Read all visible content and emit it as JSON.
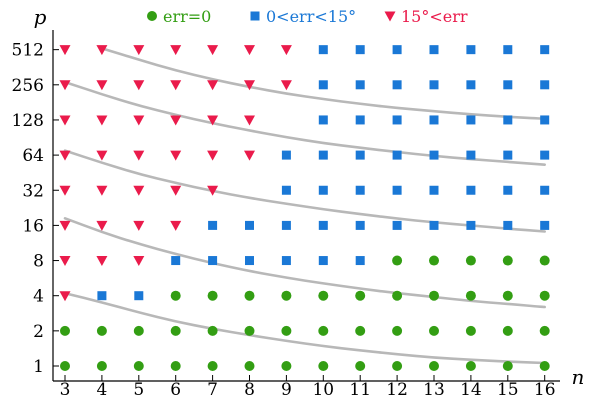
{
  "chart_data": {
    "type": "scatter",
    "xlabel": "n",
    "ylabel": "p",
    "x_ticks": [
      "3",
      "4",
      "5",
      "6",
      "7",
      "8",
      "9",
      "10",
      "11",
      "12",
      "13",
      "14",
      "15",
      "16"
    ],
    "y_ticks": [
      "1",
      "2",
      "4",
      "8",
      "16",
      "32",
      "64",
      "128",
      "256",
      "512"
    ],
    "y_scale": "log2",
    "legend_position": "top",
    "series": [
      {
        "name": "err=0",
        "marker": "circle",
        "color": "#339e13",
        "points": [
          [
            3,
            1
          ],
          [
            4,
            1
          ],
          [
            5,
            1
          ],
          [
            6,
            1
          ],
          [
            7,
            1
          ],
          [
            8,
            1
          ],
          [
            9,
            1
          ],
          [
            10,
            1
          ],
          [
            11,
            1
          ],
          [
            12,
            1
          ],
          [
            13,
            1
          ],
          [
            14,
            1
          ],
          [
            15,
            1
          ],
          [
            16,
            1
          ],
          [
            3,
            2
          ],
          [
            4,
            2
          ],
          [
            5,
            2
          ],
          [
            6,
            2
          ],
          [
            7,
            2
          ],
          [
            8,
            2
          ],
          [
            9,
            2
          ],
          [
            10,
            2
          ],
          [
            11,
            2
          ],
          [
            12,
            2
          ],
          [
            13,
            2
          ],
          [
            14,
            2
          ],
          [
            15,
            2
          ],
          [
            16,
            2
          ],
          [
            6,
            4
          ],
          [
            7,
            4
          ],
          [
            8,
            4
          ],
          [
            9,
            4
          ],
          [
            10,
            4
          ],
          [
            11,
            4
          ],
          [
            12,
            4
          ],
          [
            13,
            4
          ],
          [
            14,
            4
          ],
          [
            15,
            4
          ],
          [
            16,
            4
          ],
          [
            12,
            8
          ],
          [
            13,
            8
          ],
          [
            14,
            8
          ],
          [
            15,
            8
          ],
          [
            16,
            8
          ]
        ]
      },
      {
        "name": "0<err<15°",
        "marker": "square",
        "color": "#1a78d6",
        "points": [
          [
            4,
            4
          ],
          [
            5,
            4
          ],
          [
            6,
            8
          ],
          [
            7,
            8
          ],
          [
            8,
            8
          ],
          [
            9,
            8
          ],
          [
            10,
            8
          ],
          [
            11,
            8
          ],
          [
            7,
            16
          ],
          [
            8,
            16
          ],
          [
            9,
            16
          ],
          [
            10,
            16
          ],
          [
            11,
            16
          ],
          [
            12,
            16
          ],
          [
            13,
            16
          ],
          [
            14,
            16
          ],
          [
            15,
            16
          ],
          [
            16,
            16
          ],
          [
            9,
            32
          ],
          [
            10,
            32
          ],
          [
            11,
            32
          ],
          [
            12,
            32
          ],
          [
            13,
            32
          ],
          [
            14,
            32
          ],
          [
            15,
            32
          ],
          [
            16,
            32
          ],
          [
            9,
            64
          ],
          [
            10,
            64
          ],
          [
            11,
            64
          ],
          [
            12,
            64
          ],
          [
            13,
            64
          ],
          [
            14,
            64
          ],
          [
            15,
            64
          ],
          [
            16,
            64
          ],
          [
            10,
            128
          ],
          [
            11,
            128
          ],
          [
            12,
            128
          ],
          [
            13,
            128
          ],
          [
            14,
            128
          ],
          [
            15,
            128
          ],
          [
            16,
            128
          ],
          [
            10,
            256
          ],
          [
            11,
            256
          ],
          [
            12,
            256
          ],
          [
            13,
            256
          ],
          [
            14,
            256
          ],
          [
            15,
            256
          ],
          [
            16,
            256
          ],
          [
            10,
            512
          ],
          [
            11,
            512
          ],
          [
            12,
            512
          ],
          [
            13,
            512
          ],
          [
            14,
            512
          ],
          [
            15,
            512
          ],
          [
            16,
            512
          ]
        ]
      },
      {
        "name": "15°<err",
        "marker": "triangle-down",
        "color": "#ea1b4b",
        "points": [
          [
            3,
            4
          ],
          [
            3,
            8
          ],
          [
            4,
            8
          ],
          [
            5,
            8
          ],
          [
            3,
            16
          ],
          [
            4,
            16
          ],
          [
            5,
            16
          ],
          [
            6,
            16
          ],
          [
            3,
            32
          ],
          [
            4,
            32
          ],
          [
            5,
            32
          ],
          [
            6,
            32
          ],
          [
            7,
            32
          ],
          [
            3,
            64
          ],
          [
            4,
            64
          ],
          [
            5,
            64
          ],
          [
            6,
            64
          ],
          [
            7,
            64
          ],
          [
            8,
            64
          ],
          [
            3,
            128
          ],
          [
            4,
            128
          ],
          [
            5,
            128
          ],
          [
            6,
            128
          ],
          [
            7,
            128
          ],
          [
            8,
            128
          ],
          [
            3,
            256
          ],
          [
            4,
            256
          ],
          [
            5,
            256
          ],
          [
            6,
            256
          ],
          [
            7,
            256
          ],
          [
            8,
            256
          ],
          [
            9,
            256
          ],
          [
            3,
            512
          ],
          [
            4,
            512
          ],
          [
            5,
            512
          ],
          [
            6,
            512
          ],
          [
            7,
            512
          ],
          [
            8,
            512
          ],
          [
            9,
            512
          ]
        ]
      }
    ],
    "curves": [
      {
        "color": "#b8b8b8",
        "x": [
          3,
          4,
          5,
          6,
          7,
          8,
          9,
          10,
          11,
          12,
          13,
          14,
          15,
          16
        ],
        "y": [
          4.2,
          3.5,
          2.88,
          2.4,
          2.08,
          1.84,
          1.64,
          1.48,
          1.36,
          1.26,
          1.18,
          1.13,
          1.09,
          1.06
        ]
      },
      {
        "color": "#b8b8b8",
        "x": [
          3,
          4,
          5,
          6,
          7,
          8,
          9,
          10,
          11,
          12,
          13,
          14,
          15,
          16
        ],
        "y": [
          18.4,
          14,
          11.1,
          9.1,
          7.6,
          6.5,
          5.7,
          5.1,
          4.6,
          4.2,
          3.9,
          3.6,
          3.4,
          3.2
        ]
      },
      {
        "color": "#b8b8b8",
        "x": [
          3,
          4,
          5,
          6,
          7,
          8,
          9,
          10,
          11,
          12,
          13,
          14,
          15,
          16
        ],
        "y": [
          70,
          55,
          44,
          37,
          31.5,
          27.5,
          24.5,
          22,
          20,
          18.3,
          17,
          16,
          15,
          14.2
        ]
      },
      {
        "color": "#b8b8b8",
        "x": [
          3,
          4,
          5,
          6,
          7,
          8,
          9,
          10,
          11,
          12,
          13,
          14,
          15,
          16
        ],
        "y": [
          270,
          212,
          170,
          141,
          120,
          104,
          91,
          81,
          74,
          68,
          63,
          59,
          56,
          53
        ]
      },
      {
        "color": "#b8b8b8",
        "x": [
          4,
          5,
          6,
          7,
          8,
          9,
          10,
          11,
          12,
          13,
          14,
          15,
          16
        ],
        "y": [
          525,
          420,
          340,
          285,
          245,
          215,
          193,
          176,
          162,
          152,
          143,
          136,
          131
        ]
      }
    ]
  }
}
